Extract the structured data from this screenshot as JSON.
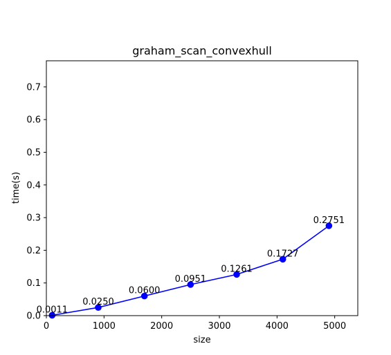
{
  "chart_data": {
    "type": "line",
    "title": "graham_scan_convexhull",
    "xlabel": "size",
    "ylabel": "time(s)",
    "xlim": [
      0,
      5400
    ],
    "ylim": [
      0,
      0.78
    ],
    "xticks": [
      0,
      1000,
      2000,
      3000,
      4000,
      5000
    ],
    "yticks": [
      0.0,
      0.1,
      0.2,
      0.3,
      0.4,
      0.5,
      0.6,
      0.7
    ],
    "x_tick_labels": [
      "0",
      "1000",
      "2000",
      "3000",
      "4000",
      "5000"
    ],
    "y_tick_labels": [
      "0.0",
      "0.1",
      "0.2",
      "0.3",
      "0.4",
      "0.5",
      "0.6",
      "0.7"
    ],
    "grid": false,
    "legend": "none",
    "series": [
      {
        "color": "#0000ff",
        "marker": "circle",
        "x": [
          100,
          900,
          1700,
          2500,
          3300,
          4100,
          4900
        ],
        "y": [
          0.0011,
          0.025,
          0.06,
          0.0951,
          0.1261,
          0.1727,
          0.2751
        ],
        "labels": [
          "0.0011",
          "0.0250",
          "0.0600",
          "0.0951",
          "0.1261",
          "0.1727",
          "0.2751"
        ]
      }
    ]
  }
}
